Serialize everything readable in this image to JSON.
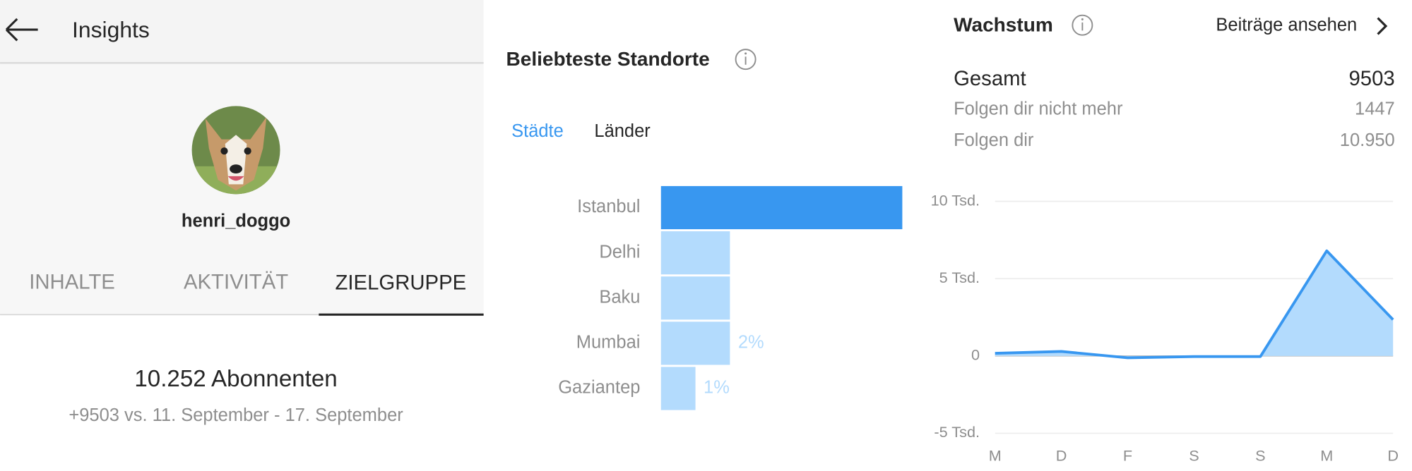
{
  "header": {
    "title": "Insights"
  },
  "profile": {
    "username": "henri_doggo"
  },
  "tabs": [
    "INHALTE",
    "AKTIVITÄT",
    "ZIELGRUPPE"
  ],
  "followers": {
    "count": "10.252 Abonnenten",
    "change": "+9503 vs. 11. September - 17. September"
  },
  "locations": {
    "title": "Beliebteste Standorte",
    "tabs": [
      "Städte",
      "Länder"
    ],
    "chart_data": {
      "type": "bar",
      "orientation": "horizontal",
      "categories": [
        "Istanbul",
        "Delhi",
        "Baku",
        "Mumbai",
        "Gaziantep"
      ],
      "values": [
        7,
        2,
        2,
        2,
        1
      ],
      "value_labels": [
        null,
        null,
        null,
        "2%",
        "1%"
      ],
      "colors": [
        "#3897f0",
        "#b3dbfd",
        "#b3dbfd",
        "#b3dbfd",
        "#b3dbfd"
      ],
      "xlim": [
        0,
        7
      ]
    }
  },
  "growth": {
    "title": "Wachstum",
    "link": "Beiträge ansehen",
    "stats": [
      {
        "label": "Gesamt",
        "value": "9503"
      },
      {
        "label": "Folgen dir nicht mehr",
        "value": "1447"
      },
      {
        "label": "Folgen dir",
        "value": "10.950"
      }
    ],
    "chart_data": {
      "type": "area",
      "categories": [
        "M",
        "D",
        "F",
        "S",
        "S",
        "M",
        "D"
      ],
      "series": [
        {
          "color": "#3897f0",
          "values": [
            170,
            290,
            -120,
            -40,
            -40,
            6800,
            2350
          ]
        }
      ],
      "ylim": [
        -5000,
        10000
      ],
      "yticks": [
        {
          "value": 10000,
          "label": "10 Tsd."
        },
        {
          "value": 5000,
          "label": "5 Tsd."
        },
        0,
        {
          "value": -5000,
          "label": "-5 Tsd."
        }
      ],
      "grid": true
    }
  }
}
